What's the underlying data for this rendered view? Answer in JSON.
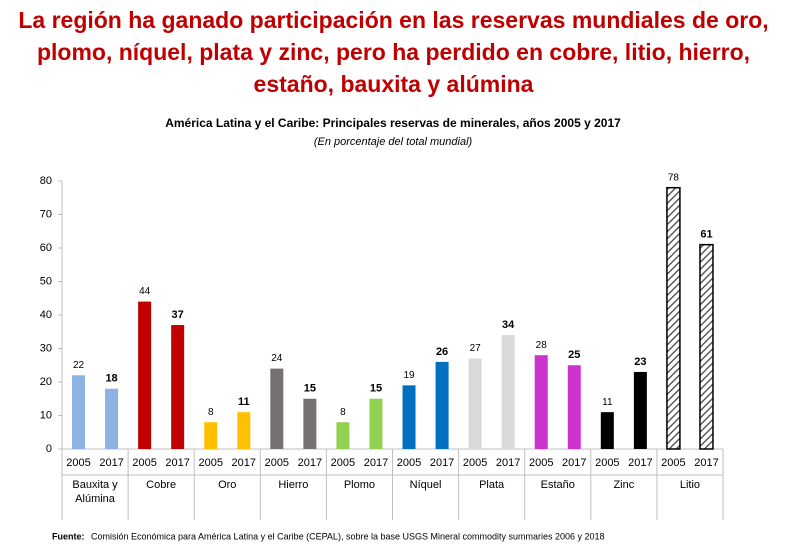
{
  "chart_data": {
    "type": "grouped_bar",
    "headline": "La región ha ganado participación en las reservas mundiales de oro, plomo, níquel, plata y zinc, pero ha perdido en cobre, litio, hierro, estaño, bauxita y alúmina",
    "title": "América Latina y el Caribe: Principales reservas de minerales, años 2005 y 2017",
    "subtitle": "(En porcentaje del total mundial)",
    "categories": [
      "Bauxita y Alúmina",
      "Cobre",
      "Oro",
      "Hierro",
      "Plomo",
      "Níquel",
      "Plata",
      "Estaño",
      "Zinc",
      "Litio"
    ],
    "bar_colors": [
      "#8db3e2",
      "#c00000",
      "#ffc000",
      "#767171",
      "#92d050",
      "#0070c0",
      "#d9d9d9",
      "#cc33cc",
      "#000000",
      "#404040"
    ],
    "hatched": [
      false,
      false,
      false,
      false,
      false,
      false,
      false,
      false,
      false,
      true
    ],
    "series": [
      {
        "name": "2005",
        "values": [
          22,
          44,
          8,
          24,
          8,
          19,
          27,
          28,
          11,
          78
        ]
      },
      {
        "name": "2017",
        "values": [
          18,
          37,
          11,
          15,
          15,
          26,
          34,
          25,
          23,
          61
        ]
      }
    ],
    "ylim": [
      0,
      80
    ],
    "yticks": [
      0,
      10,
      20,
      30,
      40,
      50,
      60,
      70,
      80
    ],
    "source_label": "Fuente:",
    "source": "Comisión Económica para América Latina y el Caribe (CEPAL), sobre la base USGS Mineral commodity summaries 2006 y 2018"
  }
}
